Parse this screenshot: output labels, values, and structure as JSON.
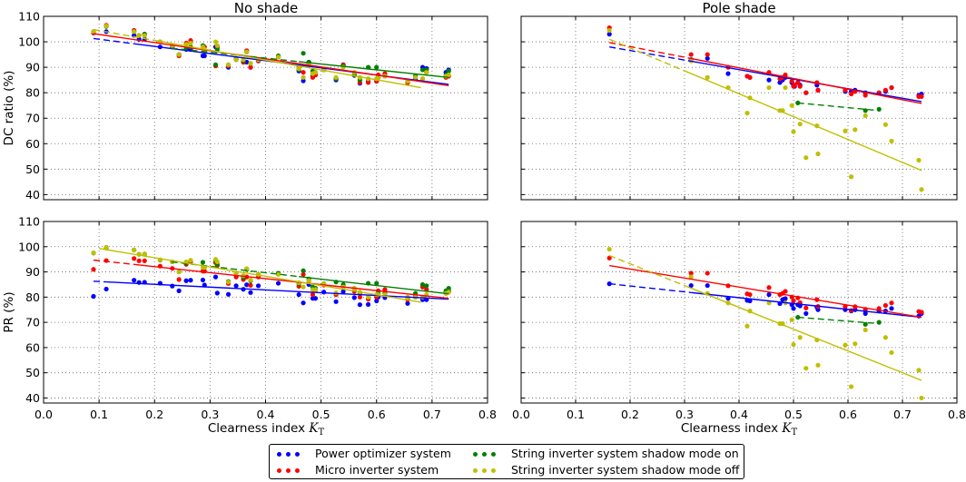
{
  "chart_data": [
    {
      "type": "scatter",
      "title": "No shade",
      "ylabel": "DC ratio (%)",
      "xlabel": "",
      "xlim": [
        0.0,
        0.8
      ],
      "ylim": [
        38,
        110
      ],
      "xticks": [
        "0.0",
        "0.1",
        "0.2",
        "0.3",
        "0.4",
        "0.5",
        "0.6",
        "0.7",
        "0.8"
      ],
      "yticks": [
        "40",
        "50",
        "60",
        "70",
        "80",
        "90",
        "100",
        "110"
      ],
      "show_xticklabels": false,
      "show_yticklabels": true,
      "grid": true,
      "x": [
        0.09,
        0.113,
        0.163,
        0.172,
        0.182,
        0.21,
        0.232,
        0.244,
        0.257,
        0.265,
        0.287,
        0.29,
        0.31,
        0.313,
        0.333,
        0.347,
        0.36,
        0.366,
        0.373,
        0.387,
        0.423,
        0.46,
        0.468,
        0.478,
        0.485,
        0.49,
        0.505,
        0.527,
        0.54,
        0.56,
        0.57,
        0.585,
        0.6,
        0.603,
        0.615,
        0.656,
        0.67,
        0.683,
        0.69,
        0.725,
        0.73
      ],
      "series": [
        {
          "key": "power_optimizer",
          "values": [
            103.5,
            104,
            102.5,
            101,
            101,
            98,
            98,
            95,
            97,
            97,
            94.5,
            94.5,
            98,
            98,
            90,
            93,
            92,
            92,
            90,
            92.5,
            94,
            88.5,
            84.7,
            92,
            86.5,
            87,
            89,
            85,
            91,
            86.8,
            83.7,
            84.5,
            84.5,
            86,
            86.5,
            84,
            85.5,
            90,
            89.5,
            88,
            89
          ],
          "fit": [
            [
              0.09,
              101.3
            ],
            [
              0.73,
              83.3
            ]
          ],
          "dashed_until": 0.163
        },
        {
          "key": "micro_inverter",
          "values": [
            103.5,
            106.5,
            104.5,
            102.5,
            103,
            100,
            98.5,
            94.5,
            99.5,
            100.5,
            97.5,
            98,
            90.5,
            98,
            90.5,
            93,
            92,
            96.5,
            90,
            92.5,
            94,
            90,
            88,
            91.5,
            86,
            87,
            89,
            85.5,
            91,
            87,
            84,
            84,
            84.5,
            87,
            87.5,
            84,
            86.5,
            85.5,
            88,
            86,
            86.5
          ],
          "fit": [
            [
              0.09,
              103.2
            ],
            [
              0.73,
              82.8
            ]
          ],
          "dashed_until": 0.09
        },
        {
          "key": "string_shadow_on",
          "values": [
            104,
            106,
            104,
            102.5,
            103,
            100,
            98.5,
            95,
            98,
            98,
            98.5,
            96.5,
            91,
            97,
            91,
            93.5,
            92.5,
            96,
            91.5,
            93,
            94.5,
            89,
            95.5,
            92,
            88.5,
            88,
            89,
            85.5,
            90.5,
            87,
            85,
            90,
            90,
            86,
            86.5,
            84.5,
            86.5,
            89,
            89,
            87,
            88.5
          ],
          "fit": [
            [
              0.23,
              97.5
            ],
            [
              0.73,
              86
            ]
          ],
          "dashed_until": 0.46
        },
        {
          "key": "string_shadow_off",
          "values": [
            104,
            106.2,
            104,
            102.5,
            102.5,
            100,
            98.5,
            95,
            99,
            99.5,
            98,
            97,
            100,
            98.5,
            91,
            93,
            93,
            96,
            91.5,
            93,
            94,
            89.5,
            86,
            91,
            87.5,
            88,
            89,
            86,
            90,
            88,
            86,
            85.5,
            85.5,
            86,
            86.5,
            84.5,
            86,
            85.5,
            88,
            86.5,
            87
          ],
          "fit": [
            [
              0.09,
              104.8
            ],
            [
              0.68,
              82
            ]
          ],
          "dashed_until": 0.21
        }
      ]
    },
    {
      "type": "scatter",
      "title": "Pole shade",
      "ylabel": "",
      "xlabel": "",
      "xlim": [
        0.0,
        0.8
      ],
      "ylim": [
        38,
        110
      ],
      "xticks": [
        "0.0",
        "0.1",
        "0.2",
        "0.3",
        "0.4",
        "0.5",
        "0.6",
        "0.7",
        "0.8"
      ],
      "yticks": [
        "40",
        "50",
        "60",
        "70",
        "80",
        "90",
        "100",
        "110"
      ],
      "show_xticklabels": false,
      "show_yticklabels": false,
      "grid": true,
      "x": [
        0.162,
        0.312,
        0.342,
        0.38,
        0.415,
        0.42,
        0.455,
        0.475,
        0.48,
        0.485,
        0.497,
        0.5,
        0.502,
        0.508,
        0.512,
        0.523,
        0.543,
        0.545,
        0.595,
        0.606,
        0.613,
        0.632,
        0.657,
        0.669,
        0.68,
        0.73,
        0.735
      ],
      "series": [
        {
          "key": "power_optimizer",
          "values": [
            103,
            93,
            93.5,
            87.5,
            86.5,
            86,
            85,
            84,
            85,
            86,
            84,
            83,
            82.5,
            84,
            83,
            80,
            83,
            81,
            80.5,
            80.5,
            81,
            80,
            80,
            80.5,
            82,
            79,
            79.5
          ],
          "fit": [
            [
              0.162,
              98
            ],
            [
              0.735,
              76.5
            ]
          ],
          "dashed_until": 0.312
        },
        {
          "key": "micro_inverter",
          "values": [
            105.5,
            95,
            95,
            90,
            86.5,
            86,
            88,
            85.5,
            86,
            87,
            84.5,
            82.5,
            83,
            84,
            82.5,
            80,
            84,
            81,
            81,
            79.5,
            80.5,
            79,
            80,
            81,
            82,
            78.5,
            78.5
          ],
          "fit": [
            [
              0.162,
              99.7
            ],
            [
              0.735,
              75.8
            ]
          ],
          "dashed_until": 0.312
        },
        {
          "key": "string_shadow_on",
          "values": [
            null,
            null,
            null,
            null,
            null,
            null,
            null,
            null,
            null,
            null,
            null,
            null,
            null,
            76,
            null,
            null,
            null,
            null,
            null,
            null,
            null,
            73,
            73.5,
            null,
            null,
            null,
            null
          ],
          "fit": [
            [
              0.508,
              76
            ],
            [
              0.657,
              73
            ]
          ],
          "dashed_until": 0.657
        },
        {
          "key": "string_shadow_off",
          "values": [
            104.5,
            92.5,
            86,
            82,
            72,
            78,
            82,
            73,
            73,
            82,
            75,
            64.7,
            null,
            null,
            67.7,
            54.5,
            67,
            56,
            65,
            47,
            65.5,
            71,
            null,
            67.5,
            61,
            53.5,
            42
          ],
          "fit": [
            [
              0.162,
              101
            ],
            [
              0.735,
              49.5
            ]
          ],
          "dashed_until": 0.3
        }
      ]
    },
    {
      "type": "scatter",
      "title": "",
      "ylabel": "PR (%)",
      "xlabel": "Clearness index",
      "xlabel_symbol": "K",
      "xlabel_subscript": "T",
      "xlim": [
        0.0,
        0.8
      ],
      "ylim": [
        38,
        110
      ],
      "xticks": [
        "0.0",
        "0.1",
        "0.2",
        "0.3",
        "0.4",
        "0.5",
        "0.6",
        "0.7",
        "0.8"
      ],
      "yticks": [
        "40",
        "50",
        "60",
        "70",
        "80",
        "90",
        "100",
        "110"
      ],
      "show_xticklabels": true,
      "show_yticklabels": true,
      "grid": true,
      "x": [
        0.09,
        0.113,
        0.163,
        0.172,
        0.182,
        0.21,
        0.232,
        0.244,
        0.257,
        0.265,
        0.287,
        0.29,
        0.31,
        0.313,
        0.333,
        0.347,
        0.36,
        0.366,
        0.373,
        0.387,
        0.423,
        0.46,
        0.468,
        0.478,
        0.485,
        0.49,
        0.505,
        0.527,
        0.54,
        0.56,
        0.57,
        0.585,
        0.6,
        0.603,
        0.615,
        0.656,
        0.67,
        0.683,
        0.69,
        0.725,
        0.73
      ],
      "series": [
        {
          "key": "power_optimizer",
          "values": [
            80.3,
            83.2,
            86.7,
            85.8,
            85.9,
            85.5,
            84.4,
            82.5,
            86.5,
            86.7,
            86.8,
            84.8,
            88,
            81.6,
            81.1,
            84.5,
            83.1,
            84.9,
            81.8,
            84.5,
            85.5,
            81,
            77.7,
            85,
            79.5,
            79.5,
            82,
            78.2,
            82.2,
            79.8,
            77,
            77.1,
            78.5,
            80,
            79.8,
            77.5,
            80,
            79,
            79,
            82,
            82.5
          ],
          "fit": [
            [
              0.09,
              86.3
            ],
            [
              0.73,
              79.2
            ]
          ],
          "dashed_until": 0.113
        },
        {
          "key": "micro_inverter",
          "values": [
            91,
            94.5,
            95.3,
            94.4,
            94.4,
            92.3,
            91.4,
            87,
            93,
            94,
            90.3,
            90.3,
            93.7,
            92.5,
            85.4,
            88,
            87,
            88,
            84.7,
            88,
            89.2,
            84.3,
            89,
            86.5,
            81,
            82.8,
            84.8,
            81,
            84.2,
            82.3,
            80,
            79.2,
            80,
            82.5,
            83,
            79,
            80.5,
            84,
            83,
            81.5,
            82
          ],
          "fit": [
            [
              0.09,
              94.7
            ],
            [
              0.73,
              79.5
            ]
          ],
          "dashed_until": 0.163
        },
        {
          "key": "string_shadow_on",
          "values": [
            97.5,
            99.5,
            98.7,
            97,
            97,
            94.7,
            94,
            90,
            93.5,
            94.5,
            93.8,
            91.8,
            94.5,
            93,
            86.2,
            89.5,
            87.8,
            91,
            86.5,
            89,
            89.5,
            85.3,
            90.5,
            87.2,
            84,
            83.5,
            85.3,
            86,
            85,
            83.5,
            81.5,
            85.5,
            85.5,
            81.5,
            81.5,
            79.8,
            81.5,
            85,
            84.5,
            82.5,
            83.5
          ],
          "fit": [
            [
              0.23,
              94
            ],
            [
              0.73,
              81.3
            ]
          ],
          "dashed_until": 0.46
        },
        {
          "key": "string_shadow_off",
          "values": [
            97.6,
            99.8,
            98.7,
            97,
            97.2,
            94.8,
            94,
            90,
            94,
            94.6,
            91.8,
            91.8,
            95,
            94,
            86,
            89.5,
            88.5,
            91.3,
            86.8,
            89,
            89,
            85.7,
            84,
            86.5,
            83,
            83,
            85.2,
            81.7,
            84,
            83.5,
            82,
            80,
            81,
            81,
            81,
            80,
            80,
            80,
            81,
            81.5,
            82
          ],
          "fit": [
            [
              0.1,
              99.3
            ],
            [
              0.68,
              78
            ]
          ],
          "dashed_until": 0.1
        }
      ]
    },
    {
      "type": "scatter",
      "title": "",
      "ylabel": "",
      "xlabel": "Clearness index",
      "xlabel_symbol": "K",
      "xlabel_subscript": "T",
      "xlim": [
        0.0,
        0.8
      ],
      "ylim": [
        38,
        110
      ],
      "xticks": [
        "0.0",
        "0.1",
        "0.2",
        "0.3",
        "0.4",
        "0.5",
        "0.6",
        "0.7",
        "0.8"
      ],
      "yticks": [
        "40",
        "50",
        "60",
        "70",
        "80",
        "90",
        "100",
        "110"
      ],
      "show_xticklabels": true,
      "show_yticklabels": false,
      "grid": true,
      "x": [
        0.162,
        0.312,
        0.342,
        0.38,
        0.415,
        0.42,
        0.455,
        0.475,
        0.48,
        0.485,
        0.497,
        0.5,
        0.502,
        0.508,
        0.512,
        0.523,
        0.543,
        0.545,
        0.595,
        0.606,
        0.613,
        0.632,
        0.657,
        0.669,
        0.68,
        0.73,
        0.735
      ],
      "series": [
        {
          "key": "power_optimizer",
          "values": [
            85.3,
            84.6,
            84.6,
            79.5,
            78.7,
            78.5,
            81,
            77.4,
            79,
            79.4,
            77,
            75.5,
            null,
            77,
            76.5,
            73.5,
            76,
            75,
            75,
            74.5,
            75,
            73.5,
            74.5,
            74.5,
            75.5,
            72.5,
            73.5
          ],
          "fit": [
            [
              0.162,
              85.3
            ],
            [
              0.735,
              72
            ]
          ],
          "dashed_until": 0.312
        },
        {
          "key": "micro_inverter",
          "values": [
            95.5,
            89.5,
            89.5,
            84.5,
            81.3,
            81,
            83.8,
            81,
            81.5,
            82.3,
            80,
            78.5,
            null,
            79.7,
            77.8,
            75.7,
            79,
            76.3,
            76.3,
            74.7,
            76.2,
            75.2,
            75.5,
            76.7,
            77.7,
            74.3,
            74
          ],
          "fit": [
            [
              0.162,
              92.5
            ],
            [
              0.735,
              72
            ]
          ],
          "dashed_until": 0.162
        },
        {
          "key": "string_shadow_on",
          "values": [
            null,
            null,
            null,
            null,
            null,
            null,
            null,
            null,
            null,
            null,
            null,
            null,
            null,
            72,
            null,
            null,
            null,
            null,
            null,
            null,
            null,
            69.2,
            70,
            null,
            null,
            null,
            null
          ],
          "fit": [
            [
              0.508,
              72
            ],
            [
              0.657,
              69.5
            ]
          ],
          "dashed_until": 0.657
        },
        {
          "key": "string_shadow_off",
          "values": [
            99,
            88,
            81.5,
            77.7,
            68.5,
            74.5,
            77.7,
            69.5,
            69.5,
            77.7,
            71,
            61.2,
            null,
            null,
            64,
            51.8,
            63,
            53,
            61,
            44.5,
            61.5,
            67,
            null,
            64,
            58,
            51,
            40
          ],
          "fit": [
            [
              0.162,
              96.5
            ],
            [
              0.735,
              47
            ]
          ],
          "dashed_until": 0.3
        }
      ]
    }
  ],
  "legend": {
    "placement": "bottom-center",
    "entries": [
      {
        "key": "power_optimizer",
        "label": "Power optimizer system",
        "color": "#0000ff"
      },
      {
        "key": "micro_inverter",
        "label": "Micro inverter system",
        "color": "#ff0000"
      },
      {
        "key": "string_shadow_on",
        "label": "String inverter system shadow mode on",
        "color": "#008000"
      },
      {
        "key": "string_shadow_off",
        "label": "String inverter system shadow mode off",
        "color": "#bfbf00"
      }
    ]
  }
}
